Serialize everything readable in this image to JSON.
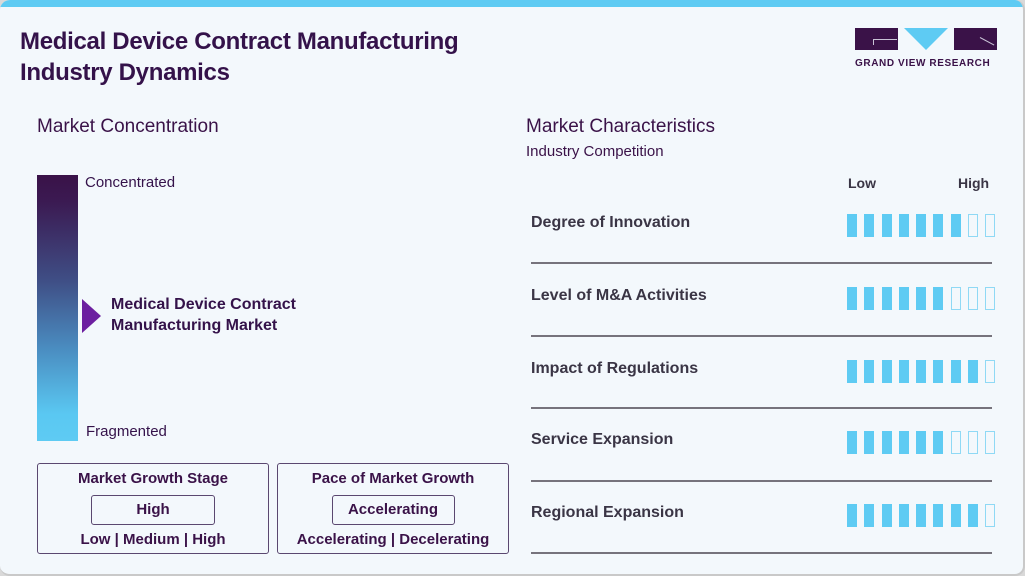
{
  "header": {
    "title_line1": "Medical Device Contract Manufacturing",
    "title_line2": "Industry Dynamics",
    "logo_text": "GRAND VIEW RESEARCH",
    "accent_color": "#5ecbf3",
    "brand_color": "#3a1248"
  },
  "concentration": {
    "title": "Market Concentration",
    "top_label": "Concentrated",
    "bottom_label": "Fragmented",
    "market_line1": "Medical Device Contract",
    "market_line2": "Manufacturing Market",
    "pointer_color": "#6c1fa0"
  },
  "growth_stage": {
    "title": "Market Growth Stage",
    "selected": "High",
    "options": "Low | Medium | High"
  },
  "growth_pace": {
    "title": "Pace of Market Growth",
    "selected": "Accelerating",
    "options": "Accelerating | Decelerating"
  },
  "characteristics": {
    "title": "Market Characteristics",
    "subtitle": "Industry Competition",
    "scale_low": "Low",
    "scale_high": "High",
    "max": 9,
    "rows": [
      {
        "label": "Degree of Innovation",
        "value": 7
      },
      {
        "label": "Level of M&A Activities",
        "value": 6
      },
      {
        "label": "Impact of Regulations",
        "value": 8
      },
      {
        "label": "Service Expansion",
        "value": 6
      },
      {
        "label": "Regional Expansion",
        "value": 8
      }
    ]
  }
}
